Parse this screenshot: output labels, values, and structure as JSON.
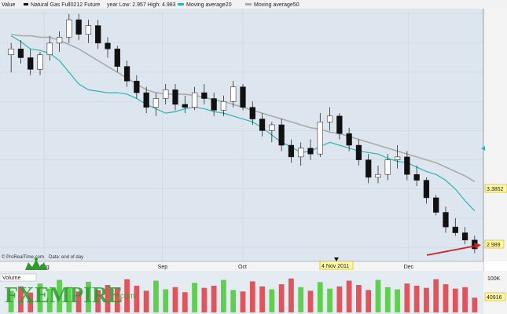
{
  "header": {
    "value_label": "Value",
    "instrument": "Natural Gas Full0212 Future",
    "year_range": "year Low: 2.957 High: 4.983",
    "ma20_label": "Moving average20",
    "ma50_label": "Moving average50"
  },
  "footer": {
    "source": "© ProRealTime.com",
    "data_note": "Data: end of day",
    "date_marker": "4 Nov 2011"
  },
  "volume": {
    "label": "Volume",
    "scale_label": "100K",
    "last_value": "40916"
  },
  "price_tags": {
    "ma_value": "3.3852",
    "last_price": "2.989"
  },
  "watermark": {
    "text_fx": "FX",
    "text_empire": "EMPIRE",
    "text_com": ".com"
  },
  "colors": {
    "up": "#ffffff",
    "down": "#111111",
    "ma20": "#2bb5b5",
    "ma50": "#aaaaaa",
    "vol_up": "#5fcf4f",
    "vol_down": "#e0555c",
    "plot_bg": "#dde6ee",
    "arrow": "#cc2222",
    "tag_bg": "#fff9a8"
  },
  "chart_data": {
    "type": "candlestick",
    "title": "Natural Gas Full0212 Future",
    "y_ticks": [
      "4.6",
      "4.4",
      "4.2",
      "4",
      "3.8",
      "3.6",
      "3.4",
      "3.2",
      "3"
    ],
    "ylim": [
      2.92,
      4.62
    ],
    "x_labels": [
      "Aug",
      "Sep",
      "Oct",
      "Nov",
      "Dec"
    ],
    "series": [
      {
        "name": "Moving average20",
        "values": [
          4.45,
          4.41,
          4.36,
          4.35,
          4.33,
          4.28,
          4.2,
          4.12,
          4.08,
          4.07,
          4.06,
          4.06,
          4.05,
          4.02,
          3.98,
          3.95,
          3.92,
          3.93,
          3.95,
          3.96,
          3.95,
          3.93,
          3.92,
          3.9,
          3.88,
          3.86,
          3.82,
          3.77,
          3.72,
          3.69,
          3.65,
          3.66,
          3.69,
          3.72,
          3.7,
          3.68,
          3.66,
          3.65,
          3.64,
          3.61,
          3.59,
          3.58,
          3.55,
          3.52,
          3.5,
          3.46,
          3.4,
          3.32,
          3.25
        ]
      },
      {
        "name": "Moving average50",
        "values": [
          4.46,
          4.45,
          4.45,
          4.44,
          4.44,
          4.42,
          4.39,
          4.36,
          4.32,
          4.28,
          4.24,
          4.2,
          4.16,
          4.12,
          4.08,
          4.06,
          4.05,
          4.05,
          4.05,
          4.04,
          4.03,
          4.01,
          4.0,
          3.98,
          3.96,
          3.94,
          3.92,
          3.9,
          3.88,
          3.86,
          3.84,
          3.82,
          3.81,
          3.79,
          3.78,
          3.76,
          3.74,
          3.72,
          3.7,
          3.68,
          3.66,
          3.64,
          3.62,
          3.6,
          3.58,
          3.55,
          3.52,
          3.49,
          3.45
        ]
      }
    ],
    "candles": [
      [
        4.32,
        4.4,
        4.2,
        4.36
      ],
      [
        4.36,
        4.42,
        4.26,
        4.3
      ],
      [
        4.3,
        4.36,
        4.18,
        4.22
      ],
      [
        4.22,
        4.34,
        4.18,
        4.32
      ],
      [
        4.32,
        4.45,
        4.28,
        4.4
      ],
      [
        4.4,
        4.48,
        4.34,
        4.44
      ],
      [
        4.44,
        4.6,
        4.4,
        4.56
      ],
      [
        4.56,
        4.6,
        4.42,
        4.46
      ],
      [
        4.46,
        4.56,
        4.4,
        4.52
      ],
      [
        4.52,
        4.56,
        4.36,
        4.4
      ],
      [
        4.4,
        4.44,
        4.3,
        4.36
      ],
      [
        4.36,
        4.38,
        4.2,
        4.24
      ],
      [
        4.24,
        4.28,
        4.1,
        4.14
      ],
      [
        4.14,
        4.18,
        4.02,
        4.06
      ],
      [
        4.06,
        4.1,
        3.92,
        3.96
      ],
      [
        3.96,
        4.06,
        3.9,
        4.02
      ],
      [
        4.02,
        4.12,
        3.98,
        4.08
      ],
      [
        4.08,
        4.12,
        3.94,
        3.98
      ],
      [
        3.98,
        4.04,
        3.92,
        3.96
      ],
      [
        3.96,
        4.1,
        3.94,
        4.06
      ],
      [
        4.06,
        4.12,
        3.98,
        4.02
      ],
      [
        4.02,
        4.06,
        3.9,
        3.94
      ],
      [
        3.94,
        4.04,
        3.9,
        4.0
      ],
      [
        4.0,
        4.14,
        3.96,
        4.1
      ],
      [
        4.1,
        4.12,
        3.94,
        3.96
      ],
      [
        3.96,
        4.0,
        3.84,
        3.88
      ],
      [
        3.88,
        3.92,
        3.76,
        3.8
      ],
      [
        3.8,
        3.86,
        3.72,
        3.84
      ],
      [
        3.84,
        3.88,
        3.66,
        3.7
      ],
      [
        3.7,
        3.74,
        3.58,
        3.62
      ],
      [
        3.62,
        3.72,
        3.56,
        3.68
      ],
      [
        3.68,
        3.74,
        3.6,
        3.64
      ],
      [
        3.64,
        3.92,
        3.62,
        3.86
      ],
      [
        3.86,
        3.96,
        3.8,
        3.9
      ],
      [
        3.9,
        3.92,
        3.74,
        3.78
      ],
      [
        3.78,
        3.82,
        3.66,
        3.7
      ],
      [
        3.7,
        3.74,
        3.56,
        3.6
      ],
      [
        3.6,
        3.64,
        3.44,
        3.48
      ],
      [
        3.48,
        3.56,
        3.44,
        3.5
      ],
      [
        3.5,
        3.64,
        3.46,
        3.6
      ],
      [
        3.6,
        3.7,
        3.54,
        3.62
      ],
      [
        3.62,
        3.66,
        3.46,
        3.5
      ],
      [
        3.5,
        3.56,
        3.42,
        3.46
      ],
      [
        3.46,
        3.48,
        3.3,
        3.34
      ],
      [
        3.34,
        3.36,
        3.22,
        3.24
      ],
      [
        3.24,
        3.28,
        3.1,
        3.14
      ],
      [
        3.14,
        3.2,
        3.08,
        3.1
      ],
      [
        3.1,
        3.14,
        3.02,
        3.05
      ],
      [
        3.05,
        3.08,
        2.96,
        2.99
      ]
    ],
    "volume_k": [
      60,
      72,
      55,
      80,
      66,
      90,
      70,
      58,
      85,
      62,
      76,
      68,
      92,
      74,
      60,
      88,
      64,
      70,
      56,
      82,
      68,
      74,
      90,
      62,
      58,
      86,
      72,
      64,
      78,
      94,
      70,
      60,
      84,
      66,
      72,
      88,
      76,
      62,
      90,
      70,
      64,
      80,
      74,
      68,
      92,
      78,
      66,
      70,
      41
    ],
    "volume_up": [
      1,
      0,
      0,
      1,
      1,
      1,
      1,
      0,
      1,
      0,
      0,
      0,
      0,
      0,
      0,
      1,
      1,
      0,
      0,
      1,
      0,
      0,
      1,
      1,
      0,
      0,
      0,
      1,
      0,
      0,
      1,
      0,
      1,
      1,
      0,
      0,
      0,
      0,
      1,
      1,
      1,
      0,
      0,
      0,
      0,
      0,
      0,
      0,
      0
    ],
    "volume_max_k": 100
  }
}
